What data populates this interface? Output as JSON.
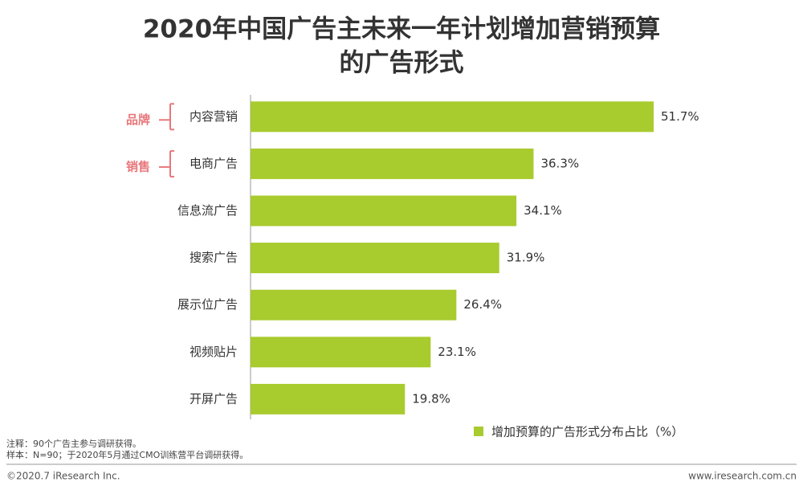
{
  "chart_data": {
    "type": "bar",
    "title": [
      "2020年中国广告主未来一年计划增加营销预算",
      "的广告形式"
    ],
    "categories": [
      "内容营销",
      "电商广告",
      "信息流广告",
      "搜索广告",
      "展示位广告",
      "视频贴片",
      "开屏广告"
    ],
    "series": [
      {
        "name": "增加预算的广告形式分布占比（%）",
        "color": "#a8cb2e",
        "values": [
          51.7,
          36.3,
          34.1,
          31.9,
          26.4,
          23.1,
          19.8
        ],
        "value_labels": [
          "51.7%",
          "36.3%",
          "34.1%",
          "31.9%",
          "26.4%",
          "23.1%",
          "19.8%"
        ]
      }
    ],
    "annotations": [
      "品牌",
      "销售"
    ]
  },
  "notes": [
    "注释：90个广告主参与调研获得。",
    "样本：N=90；于2020年5月通过CMO训练营平台调研获得。"
  ],
  "footer": {
    "copyright": "©2020.7 iResearch Inc.",
    "website": "www.iresearch.com.cn"
  }
}
